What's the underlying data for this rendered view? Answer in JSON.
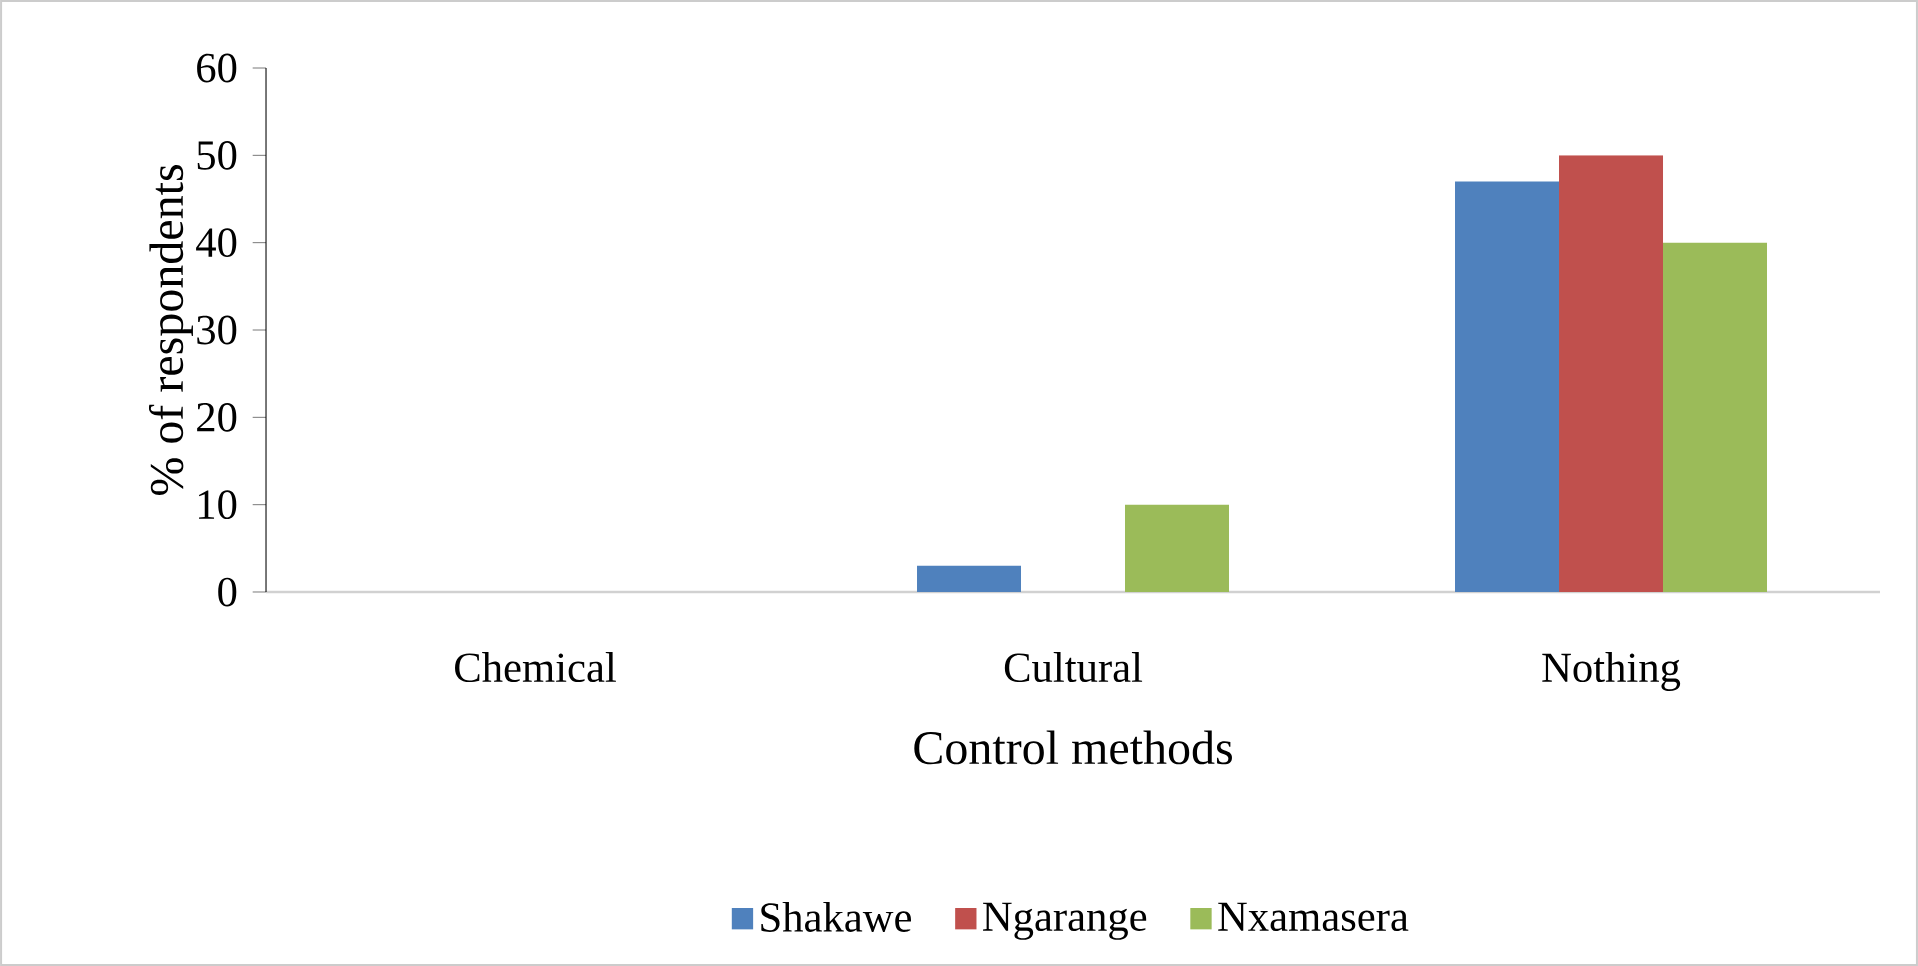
{
  "chart_data": {
    "type": "bar",
    "xlabel": "Control methods",
    "ylabel": "% of respondents",
    "categories": [
      "Chemical",
      "Cultural",
      "Nothing"
    ],
    "series": [
      {
        "name": "Shakawe",
        "color": "#4f81bd",
        "values": [
          0,
          3,
          47
        ]
      },
      {
        "name": "Ngarange",
        "color": "#c0504d",
        "values": [
          0,
          0,
          50
        ]
      },
      {
        "name": "Nxamasera",
        "color": "#9bbb59",
        "values": [
          0,
          10,
          40
        ]
      }
    ],
    "ylim": [
      0,
      60
    ],
    "yticks": [
      0,
      10,
      20,
      30,
      40,
      50,
      60
    ],
    "legend": "bottom"
  }
}
